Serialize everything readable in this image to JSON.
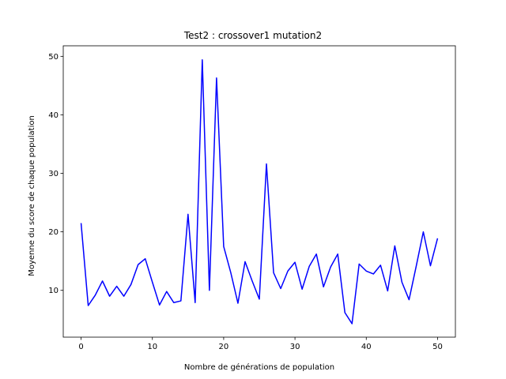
{
  "chart_data": {
    "type": "line",
    "title": "Test2 : crossover1 mutation2",
    "xlabel": "Nombre de générations de population",
    "ylabel": "Moyenne du score de chaque population",
    "xlim": [
      -2.5,
      52.5
    ],
    "ylim": [
      2.0,
      51.8
    ],
    "xticks": [
      0,
      10,
      20,
      30,
      40,
      50
    ],
    "yticks": [
      10,
      20,
      30,
      40,
      50
    ],
    "grid": false,
    "series": [
      {
        "color": "#0000ff",
        "x": [
          0,
          1,
          2,
          3,
          4,
          5,
          6,
          7,
          8,
          9,
          10,
          11,
          12,
          13,
          14,
          15,
          16,
          17,
          18,
          19,
          20,
          21,
          22,
          23,
          24,
          25,
          26,
          27,
          28,
          29,
          30,
          31,
          32,
          33,
          34,
          35,
          36,
          37,
          38,
          39,
          40,
          41,
          42,
          43,
          44,
          45,
          46,
          47,
          48,
          49,
          50
        ],
        "y": [
          21.5,
          7.4,
          9.2,
          11.6,
          9.0,
          10.7,
          9.0,
          11.0,
          14.4,
          15.4,
          11.4,
          7.5,
          9.8,
          7.9,
          8.2,
          23.0,
          7.9,
          49.4,
          10.0,
          46.3,
          17.5,
          13.0,
          7.8,
          14.9,
          11.6,
          8.5,
          31.6,
          13.0,
          10.3,
          13.3,
          14.8,
          10.2,
          14.1,
          16.2,
          10.6,
          14.0,
          16.2,
          6.2,
          4.3,
          14.5,
          13.3,
          12.8,
          14.3,
          9.9,
          17.6,
          11.4,
          8.4,
          14.1,
          20.0,
          14.2,
          18.9
        ]
      }
    ]
  }
}
